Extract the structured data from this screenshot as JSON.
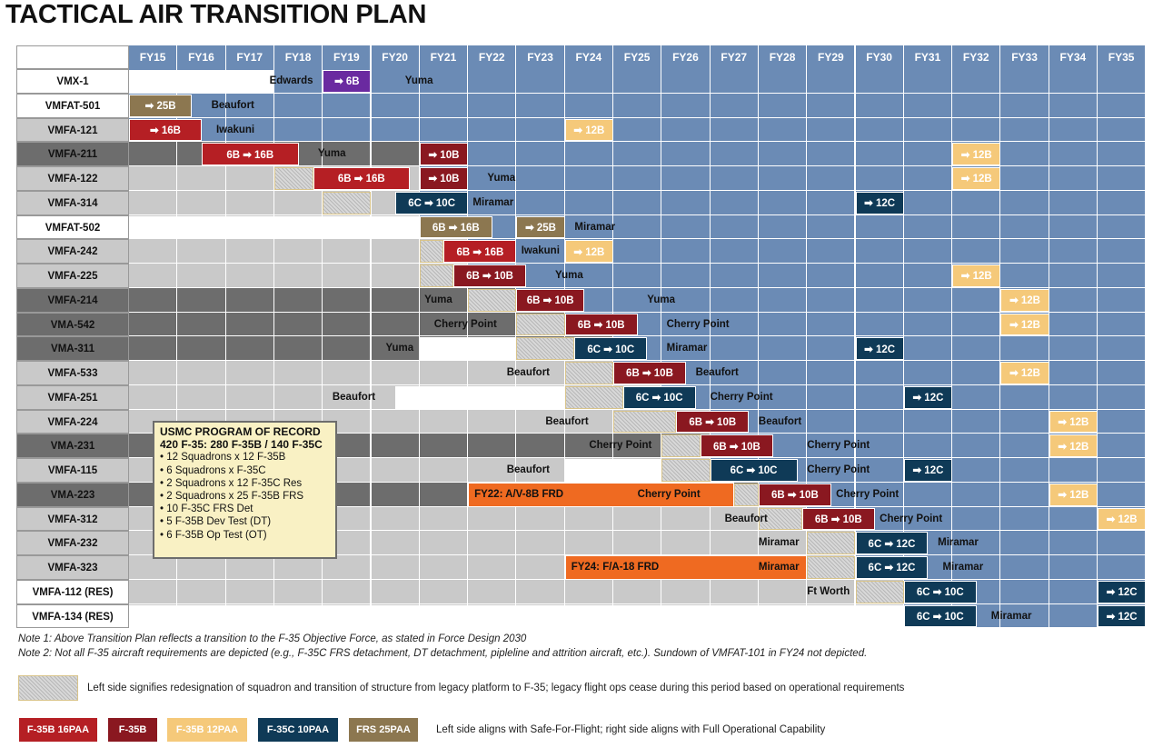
{
  "title": "TACTICAL AIR TRANSITION PLAN",
  "fiscal_years": [
    "FY15",
    "FY16",
    "FY17",
    "FY18",
    "FY19",
    "FY20",
    "FY21",
    "FY22",
    "FY23",
    "FY24",
    "FY25",
    "FY26",
    "FY27",
    "FY28",
    "FY29",
    "FY30",
    "FY31",
    "FY32",
    "FY33",
    "FY34",
    "FY35"
  ],
  "colors": {
    "blue_cell": "#6b8bb5",
    "light_gray": "#c9c9c9",
    "dark_gray": "#6d6d6d",
    "f35b_16": "#b51f24",
    "f35b": "#8a1820",
    "f35b_12": "#f5c97a",
    "f35c_10": "#0f3a57",
    "frs_25": "#8c7750",
    "purple": "#6a2aa0",
    "orange": "#ef6a21"
  },
  "squadrons": [
    {
      "name": "VMX-1"
    },
    {
      "name": "VMFAT-501"
    },
    {
      "name": "VMFA-121"
    },
    {
      "name": "VMFA-211"
    },
    {
      "name": "VMFA-122"
    },
    {
      "name": "VMFA-314"
    },
    {
      "name": "VMFAT-502"
    },
    {
      "name": "VMFA-242"
    },
    {
      "name": "VMFA-225"
    },
    {
      "name": "VMFA-214"
    },
    {
      "name": "VMA-542"
    },
    {
      "name": "VMA-311"
    },
    {
      "name": "VMFA-533"
    },
    {
      "name": "VMFA-251"
    },
    {
      "name": "VMFA-224"
    },
    {
      "name": "VMA-231"
    },
    {
      "name": "VMFA-115"
    },
    {
      "name": "VMA-223"
    },
    {
      "name": "VMFA-312"
    },
    {
      "name": "VMFA-232"
    },
    {
      "name": "VMFA-323"
    },
    {
      "name": "VMFA-112 (RES)"
    },
    {
      "name": "VMFA-134 (RES)"
    }
  ],
  "bars": [
    {
      "row": 0,
      "start": 4,
      "end": 5,
      "kind": "purple",
      "text": "➡ 6B"
    },
    {
      "row": 1,
      "start": 0,
      "end": 1.3,
      "kind": "frs_25",
      "text": "➡ 25B"
    },
    {
      "row": 2,
      "start": 0,
      "end": 1.5,
      "kind": "f35b_16",
      "text": "➡ 16B"
    },
    {
      "row": 2,
      "start": 9,
      "end": 10,
      "kind": "f35b_12",
      "text": "➡ 12B"
    },
    {
      "row": 3,
      "start": 1.5,
      "end": 3.5,
      "kind": "f35b_16",
      "text": "6B ➡ 16B"
    },
    {
      "row": 3,
      "start": 6,
      "end": 7,
      "kind": "f35b",
      "text": "➡ 10B"
    },
    {
      "row": 3,
      "start": 17,
      "end": 18,
      "kind": "f35b_12",
      "text": "➡ 12B"
    },
    {
      "row": 4,
      "start": 3.8,
      "end": 5.8,
      "kind": "f35b_16",
      "text": "6B ➡ 16B"
    },
    {
      "row": 4,
      "start": 6,
      "end": 7,
      "kind": "f35b",
      "text": "➡ 10B"
    },
    {
      "row": 4,
      "start": 17,
      "end": 18,
      "kind": "f35b_12",
      "text": "➡ 12B"
    },
    {
      "row": 5,
      "start": 5.5,
      "end": 7,
      "kind": "f35c_10",
      "text": "6C ➡ 10C"
    },
    {
      "row": 5,
      "start": 15,
      "end": 16,
      "kind": "f35c_10",
      "text": "➡ 12C"
    },
    {
      "row": 6,
      "start": 6,
      "end": 7.5,
      "kind": "frs_25",
      "text": "6B ➡ 16B"
    },
    {
      "row": 6,
      "start": 8,
      "end": 9,
      "kind": "frs_25",
      "text": "➡ 25B"
    },
    {
      "row": 7,
      "start": 6.5,
      "end": 8,
      "kind": "f35b_16",
      "text": "6B ➡ 16B"
    },
    {
      "row": 7,
      "start": 9,
      "end": 10,
      "kind": "f35b_12",
      "text": "➡ 12B"
    },
    {
      "row": 8,
      "start": 6.7,
      "end": 8.2,
      "kind": "f35b",
      "text": "6B ➡ 10B"
    },
    {
      "row": 8,
      "start": 17,
      "end": 18,
      "kind": "f35b_12",
      "text": "➡ 12B"
    },
    {
      "row": 9,
      "start": 8,
      "end": 9.4,
      "kind": "f35b",
      "text": "6B ➡ 10B"
    },
    {
      "row": 9,
      "start": 18,
      "end": 19,
      "kind": "f35b_12",
      "text": "➡ 12B"
    },
    {
      "row": 10,
      "start": 9,
      "end": 10.5,
      "kind": "f35b",
      "text": "6B ➡ 10B"
    },
    {
      "row": 10,
      "start": 18,
      "end": 19,
      "kind": "f35b_12",
      "text": "➡ 12B"
    },
    {
      "row": 11,
      "start": 9.2,
      "end": 10.7,
      "kind": "f35c_10",
      "text": "6C ➡ 10C"
    },
    {
      "row": 11,
      "start": 15,
      "end": 16,
      "kind": "f35c_10",
      "text": "➡ 12C"
    },
    {
      "row": 12,
      "start": 10,
      "end": 11.5,
      "kind": "f35b",
      "text": "6B ➡ 10B"
    },
    {
      "row": 12,
      "start": 18,
      "end": 19,
      "kind": "f35b_12",
      "text": "➡ 12B"
    },
    {
      "row": 13,
      "start": 10.2,
      "end": 11.7,
      "kind": "f35c_10",
      "text": "6C ➡ 10C"
    },
    {
      "row": 13,
      "start": 16,
      "end": 17,
      "kind": "f35c_10",
      "text": "➡ 12C"
    },
    {
      "row": 14,
      "start": 11.3,
      "end": 12.8,
      "kind": "f35b",
      "text": "6B ➡ 10B"
    },
    {
      "row": 14,
      "start": 19,
      "end": 20,
      "kind": "f35b_12",
      "text": "➡ 12B"
    },
    {
      "row": 15,
      "start": 11.8,
      "end": 13.3,
      "kind": "f35b",
      "text": "6B ➡ 10B"
    },
    {
      "row": 15,
      "start": 19,
      "end": 20,
      "kind": "f35b_12",
      "text": "➡ 12B"
    },
    {
      "row": 16,
      "start": 12,
      "end": 13.8,
      "kind": "f35c_10",
      "text": "6C ➡ 10C"
    },
    {
      "row": 16,
      "start": 16,
      "end": 17,
      "kind": "f35c_10",
      "text": "➡ 12C"
    },
    {
      "row": 17,
      "start": 13,
      "end": 14.5,
      "kind": "f35b",
      "text": "6B ➡ 10B"
    },
    {
      "row": 17,
      "start": 19,
      "end": 20,
      "kind": "f35b_12",
      "text": "➡ 12B"
    },
    {
      "row": 18,
      "start": 13.9,
      "end": 15.4,
      "kind": "f35b",
      "text": "6B ➡ 10B"
    },
    {
      "row": 18,
      "start": 20,
      "end": 21,
      "kind": "f35b_12",
      "text": "➡ 12B"
    },
    {
      "row": 19,
      "start": 15,
      "end": 16.5,
      "kind": "f35c_10",
      "text": "6C ➡ 12C"
    },
    {
      "row": 20,
      "start": 15,
      "end": 16.5,
      "kind": "f35c_10",
      "text": "6C ➡ 12C"
    },
    {
      "row": 21,
      "start": 16,
      "end": 17.5,
      "kind": "f35c_10",
      "text": "6C ➡ 10C"
    },
    {
      "row": 21,
      "start": 20,
      "end": 21,
      "kind": "f35c_10",
      "text": "➡ 12C"
    },
    {
      "row": 22,
      "start": 16,
      "end": 17.5,
      "kind": "f35c_10",
      "text": "6C ➡ 10C"
    },
    {
      "row": 22,
      "start": 20,
      "end": 21,
      "kind": "f35c_10",
      "text": "➡ 12C"
    }
  ],
  "orange_bars": [
    {
      "row": 17,
      "start": 7,
      "end": 12.5,
      "text": "FY22: A/V-8B FRD"
    },
    {
      "row": 20,
      "start": 9,
      "end": 14,
      "text": "FY24: F/A-18 FRD"
    }
  ],
  "location_labels": [
    {
      "row": 0,
      "at": 2.9,
      "text": "Edwards"
    },
    {
      "row": 0,
      "at": 5.7,
      "text": "Yuma"
    },
    {
      "row": 1,
      "at": 1.7,
      "text": "Beaufort"
    },
    {
      "row": 2,
      "at": 1.8,
      "text": "Iwakuni"
    },
    {
      "row": 3,
      "at": 3.9,
      "text": "Yuma"
    },
    {
      "row": 4,
      "at": 7.4,
      "text": "Yuma"
    },
    {
      "row": 5,
      "at": 7.1,
      "text": "Miramar"
    },
    {
      "row": 6,
      "at": 9.2,
      "text": "Miramar"
    },
    {
      "row": 7,
      "at": 8.1,
      "text": "Iwakuni"
    },
    {
      "row": 8,
      "at": 8.8,
      "text": "Yuma"
    },
    {
      "row": 9,
      "at": 6.1,
      "text": "Yuma"
    },
    {
      "row": 9,
      "at": 10.7,
      "text": "Yuma"
    },
    {
      "row": 10,
      "at": 6.3,
      "text": "Cherry Point"
    },
    {
      "row": 10,
      "at": 11.1,
      "text": "Cherry Point"
    },
    {
      "row": 11,
      "at": 5.3,
      "text": "Yuma"
    },
    {
      "row": 11,
      "at": 11.1,
      "text": "Miramar"
    },
    {
      "row": 12,
      "at": 7.8,
      "text": "Beaufort"
    },
    {
      "row": 12,
      "at": 11.7,
      "text": "Beaufort"
    },
    {
      "row": 13,
      "at": 4.2,
      "text": "Beaufort"
    },
    {
      "row": 13,
      "at": 12.0,
      "text": "Cherry Point"
    },
    {
      "row": 14,
      "at": 8.6,
      "text": "Beaufort"
    },
    {
      "row": 14,
      "at": 13.0,
      "text": "Beaufort"
    },
    {
      "row": 15,
      "at": 9.5,
      "text": "Cherry Point"
    },
    {
      "row": 15,
      "at": 14.0,
      "text": "Cherry Point"
    },
    {
      "row": 16,
      "at": 7.8,
      "text": "Beaufort"
    },
    {
      "row": 16,
      "at": 14.0,
      "text": "Cherry Point"
    },
    {
      "row": 17,
      "at": 10.5,
      "text": "Cherry Point"
    },
    {
      "row": 17,
      "at": 14.6,
      "text": "Cherry Point"
    },
    {
      "row": 18,
      "at": 12.3,
      "text": "Beaufort"
    },
    {
      "row": 18,
      "at": 15.5,
      "text": "Cherry Point"
    },
    {
      "row": 19,
      "at": 13.0,
      "text": "Miramar"
    },
    {
      "row": 19,
      "at": 16.7,
      "text": "Miramar"
    },
    {
      "row": 20,
      "at": 13.0,
      "text": "Miramar"
    },
    {
      "row": 20,
      "at": 16.8,
      "text": "Miramar"
    },
    {
      "row": 21,
      "at": 14.0,
      "text": "Ft Worth"
    },
    {
      "row": 22,
      "at": 17.8,
      "text": "Miramar"
    }
  ],
  "program_of_record": {
    "heading1": "USMC PROGRAM OF RECORD",
    "heading2": "420 F-35: 280 F-35B / 140 F-35C",
    "items": [
      "12 Squadrons x 12 F-35B",
      "6 Squadrons x F-35C",
      "2 Squadrons x 12 F-35C Res",
      "2 Squadrons x 25 F-35B FRS",
      "10 F-35C FRS Det",
      "5 F-35B Dev Test (DT)",
      "6 F-35B Op Test (OT)"
    ]
  },
  "notes": {
    "note1": "Note 1: Above Transition Plan reflects a transition to the F-35 Objective Force, as stated in Force Design 2030",
    "note2": "Note 2: Not all F-35 aircraft requirements are depicted (e.g., F-35C FRS detachment, DT detachment, pipleline and attrition aircraft, etc.). Sundown of VMFAT-101 in FY24 not depicted."
  },
  "legend": {
    "hatch_text": "Left side signifies redesignation of squadron and transition of structure from legacy platform to F-35; legacy flight ops cease during this period based on operational requirements",
    "swatches": [
      {
        "label": "F-35B 16PAA",
        "color": "#b51f24",
        "text_color": "#ffffff"
      },
      {
        "label": "F-35B",
        "color": "#8a1820",
        "text_color": "#ffffff"
      },
      {
        "label": "F-35B 12PAA",
        "color": "#f5c97a",
        "text_color": "#ffffff"
      },
      {
        "label": "F-35C 10PAA",
        "color": "#0f3a57",
        "text_color": "#ffffff"
      },
      {
        "label": "FRS 25PAA",
        "color": "#8c7750",
        "text_color": "#ffffff"
      }
    ],
    "swatch_text": "Left side aligns with Safe-For-Flight; right side aligns with Full Operational Capability"
  }
}
